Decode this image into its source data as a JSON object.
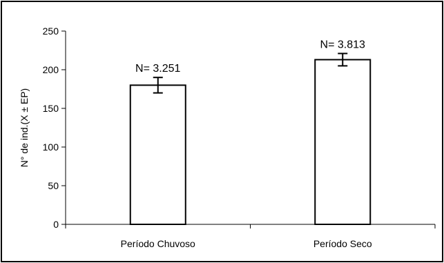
{
  "chart_data": {
    "type": "bar",
    "title": "",
    "xlabel": "",
    "ylabel": "N° de ind.(X ± EP)",
    "ylim": [
      0,
      250
    ],
    "yticks": [
      0,
      50,
      100,
      150,
      200,
      250
    ],
    "grid": false,
    "legend": "none",
    "categories": [
      "Período Chuvoso",
      "Período Seco"
    ],
    "values": [
      180,
      213
    ],
    "error": [
      10,
      8
    ],
    "annotations": [
      "N= 3.251",
      "N= 3.813"
    ],
    "colors": {
      "bar_fill": "#ffffff",
      "bar_stroke": "#000000",
      "axis": "#000000"
    }
  }
}
